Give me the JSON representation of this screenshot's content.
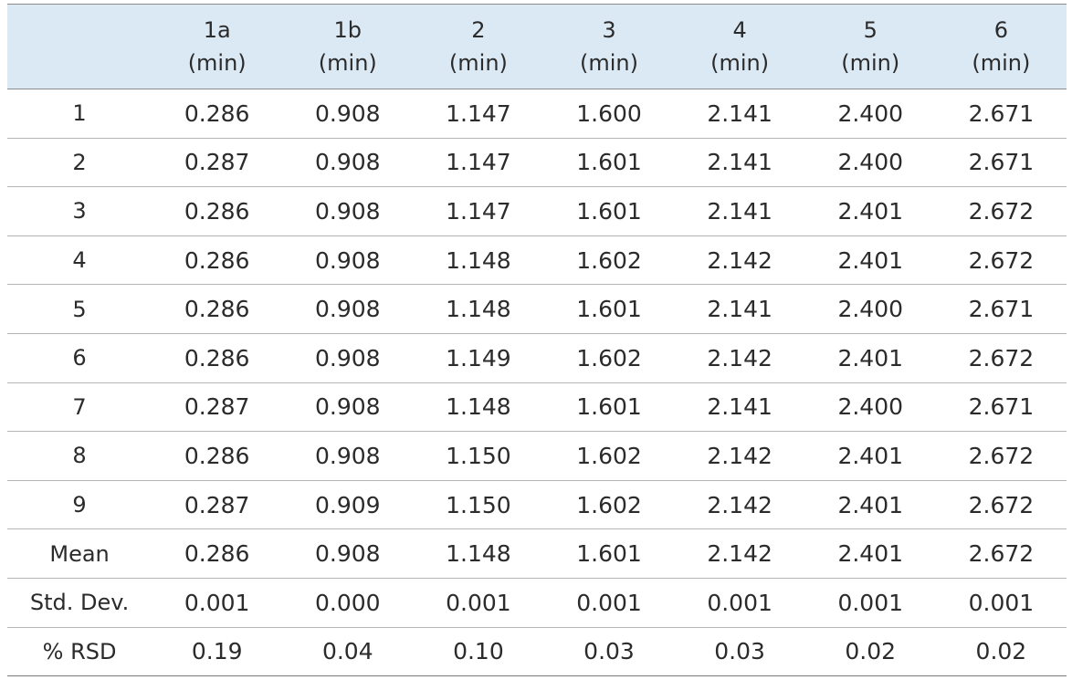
{
  "columns": [
    {
      "name": "",
      "unit": ""
    },
    {
      "name": "1a",
      "unit": "(min)"
    },
    {
      "name": "1b",
      "unit": "(min)"
    },
    {
      "name": "2",
      "unit": "(min)"
    },
    {
      "name": "3",
      "unit": "(min)"
    },
    {
      "name": "4",
      "unit": "(min)"
    },
    {
      "name": "5",
      "unit": "(min)"
    },
    {
      "name": "6",
      "unit": "(min)"
    }
  ],
  "rows": [
    [
      "1",
      "0.286",
      "0.908",
      "1.147",
      "1.600",
      "2.141",
      "2.400",
      "2.671"
    ],
    [
      "2",
      "0.287",
      "0.908",
      "1.147",
      "1.601",
      "2.141",
      "2.400",
      "2.671"
    ],
    [
      "3",
      "0.286",
      "0.908",
      "1.147",
      "1.601",
      "2.141",
      "2.401",
      "2.672"
    ],
    [
      "4",
      "0.286",
      "0.908",
      "1.148",
      "1.602",
      "2.142",
      "2.401",
      "2.672"
    ],
    [
      "5",
      "0.286",
      "0.908",
      "1.148",
      "1.601",
      "2.141",
      "2.400",
      "2.671"
    ],
    [
      "6",
      "0.286",
      "0.908",
      "1.149",
      "1.602",
      "2.142",
      "2.401",
      "2.672"
    ],
    [
      "7",
      "0.287",
      "0.908",
      "1.148",
      "1.601",
      "2.141",
      "2.400",
      "2.671"
    ],
    [
      "8",
      "0.286",
      "0.908",
      "1.150",
      "1.602",
      "2.142",
      "2.401",
      "2.672"
    ],
    [
      "9",
      "0.287",
      "0.909",
      "1.150",
      "1.602",
      "2.142",
      "2.401",
      "2.672"
    ],
    [
      "Mean",
      "0.286",
      "0.908",
      "1.148",
      "1.601",
      "2.142",
      "2.401",
      "2.672"
    ],
    [
      "Std. Dev.",
      "0.001",
      "0.000",
      "0.001",
      "0.001",
      "0.001",
      "0.001",
      "0.001"
    ],
    [
      "% RSD",
      "0.19",
      "0.04",
      "0.10",
      "0.03",
      "0.03",
      "0.02",
      "0.02"
    ]
  ],
  "colors": {
    "header_background": "#dbe9f4",
    "text": "#2b2b2b",
    "rule": "#b5b5b5"
  }
}
